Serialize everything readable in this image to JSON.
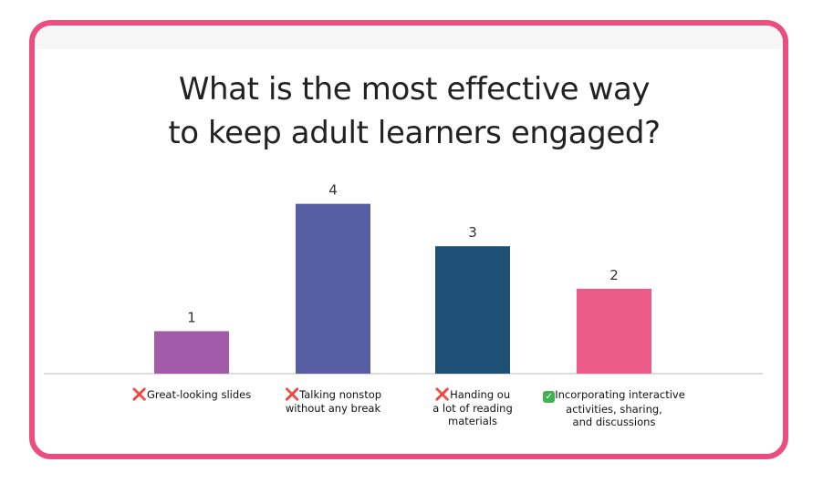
{
  "chart_data": {
    "type": "bar",
    "title": "What is the most effective way to keep adult learners engaged?",
    "title_lines": [
      "What is the most effective way",
      "to keep adult learners engaged?"
    ],
    "categories": [
      "Great-looking slides",
      "Talking nonstop without any break",
      "Handing ou a lot of reading materials",
      "Incorporating interactive activities, sharing, and discussions"
    ],
    "category_label_lines": [
      [
        "Great-looking slides"
      ],
      [
        "Talking nonstop",
        "without any break"
      ],
      [
        "Handing ou",
        "a lot of reading",
        "materials"
      ],
      [
        "Incorporating interactive",
        "activities, sharing,",
        "and discussions"
      ]
    ],
    "category_marks": [
      "cross-icon",
      "cross-icon",
      "cross-icon",
      "check-icon"
    ],
    "values": [
      1,
      4,
      3,
      2
    ],
    "data_labels": [
      "1",
      "4",
      "3",
      "2"
    ],
    "colors": [
      "#a15ba8",
      "#575ea1",
      "#1e4f74",
      "#ec5b8a"
    ],
    "ylim": [
      0,
      4.4
    ],
    "xlabel": "",
    "ylabel": "",
    "grid": false,
    "legend": "none"
  },
  "colors": {
    "frame": "#ec4d7f",
    "axis": "#bbbbbb",
    "text": "#222222"
  },
  "marks": {
    "cross": "❌",
    "check": "✓"
  }
}
